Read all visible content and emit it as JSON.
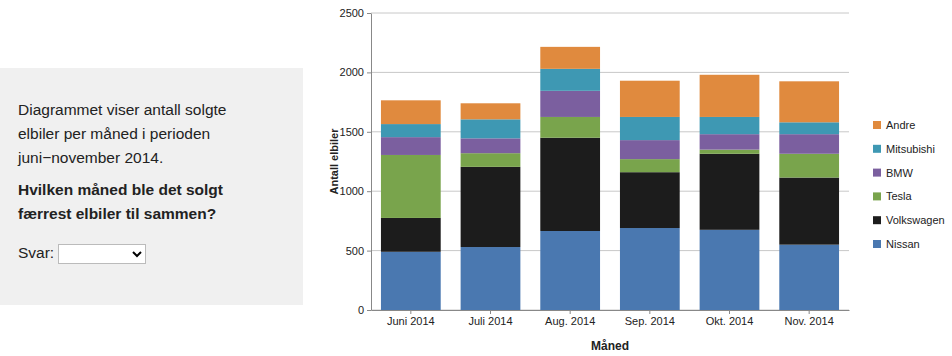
{
  "question": {
    "intro": "Diagrammet viser antall solgte elbiler per måned i perioden juni−november 2014.",
    "text": "Hvilken måned ble det solgt færrest elbiler til sammen?",
    "answer_label": "Svar:"
  },
  "chart_data": {
    "type": "bar",
    "stacked": true,
    "grid": true,
    "legend": "right",
    "x_label": "Måned",
    "y_label": "Antall elbiler",
    "categories": [
      "Juni 2014",
      "Juli 2014",
      "Aug. 2014",
      "Sep. 2014",
      "Okt. 2014",
      "Nov. 2014"
    ],
    "ylim": [
      0,
      2500
    ],
    "yticks": [
      0,
      500,
      1000,
      1500,
      2000,
      2500
    ],
    "series": [
      {
        "name": "Nissan",
        "color": "#4a78b0",
        "values": [
          490,
          530,
          665,
          690,
          675,
          550
        ]
      },
      {
        "name": "Volkswagen",
        "color": "#1c1c1c",
        "values": [
          285,
          675,
          785,
          470,
          640,
          565
        ]
      },
      {
        "name": "Tesla",
        "color": "#79a44c",
        "values": [
          530,
          115,
          175,
          110,
          35,
          200
        ]
      },
      {
        "name": "BMW",
        "color": "#7b5f9f",
        "values": [
          150,
          125,
          220,
          160,
          130,
          165
        ]
      },
      {
        "name": "Mitsubishi",
        "color": "#3e98b3",
        "values": [
          110,
          160,
          185,
          195,
          145,
          100
        ]
      },
      {
        "name": "Andre",
        "color": "#e08a3e",
        "values": [
          200,
          135,
          185,
          305,
          355,
          345
        ]
      }
    ]
  }
}
